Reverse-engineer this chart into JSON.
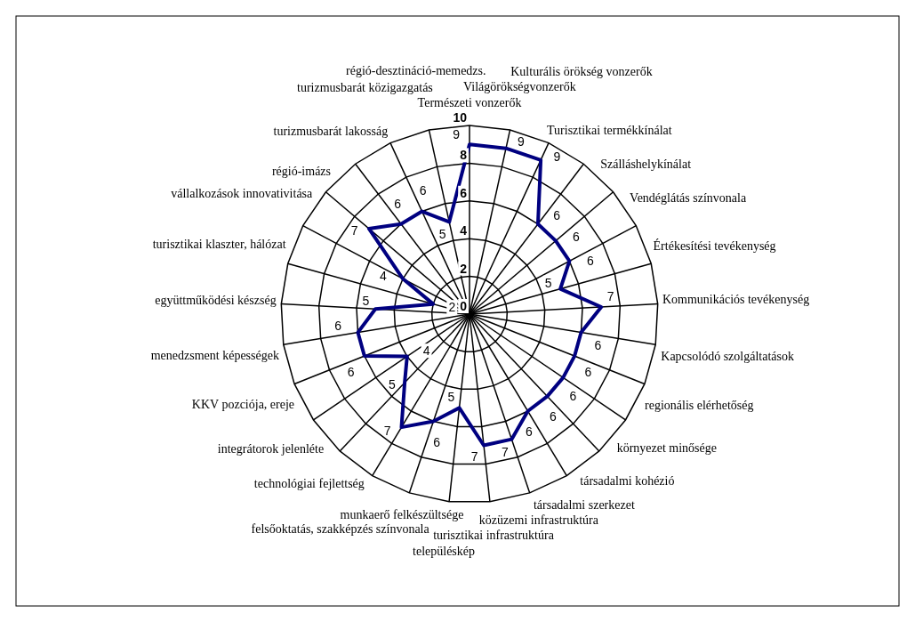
{
  "chart_data": {
    "type": "radar",
    "categories": [
      "Természeti vonzerők",
      "Világörökségvonzerők",
      "Kulturális örökség vonzerők",
      "Turisztikai termékkínálat",
      "Szálláshelykínálat",
      "Vendéglátás színvonala",
      "Értékesítési tevékenység",
      "Kommunikációs tevékenység",
      "Kapcsolódó szolgáltatások",
      "regionális elérhetőség",
      "környezet minősége",
      "társadalmi kohézió",
      "társadalmi szerkezet",
      "közüzemi infrastruktúra",
      "turisztikai infrastruktúra",
      "településkép",
      "munkaerő felkészültsége",
      "felsőoktatás, szakképzés színvonala",
      "technológiai fejlettség",
      "integrátorok jelenléte",
      "KKV pozciója, ereje",
      "menedzsment képességek",
      "együttműködési készség",
      "turisztikai klaszter, hálózat",
      "vállalkozások innovativitása",
      "régió-imázs",
      "turizmusbarát lakosság",
      "turizmusbarát közigazgatás",
      "régió-desztináció-memedzs."
    ],
    "series": [
      {
        "color": "#000080",
        "values": [
          9,
          9,
          9,
          6,
          6,
          6,
          5,
          7,
          6,
          6,
          6,
          6,
          6,
          7,
          7,
          5,
          6,
          7,
          5,
          4,
          6,
          6,
          5,
          2,
          4,
          7,
          6,
          6,
          5
        ]
      }
    ],
    "ylim": [
      0,
      10
    ],
    "yticks": [
      0,
      2,
      4,
      6,
      8,
      10
    ],
    "grid": true,
    "data_labels": true,
    "marker": "none"
  }
}
